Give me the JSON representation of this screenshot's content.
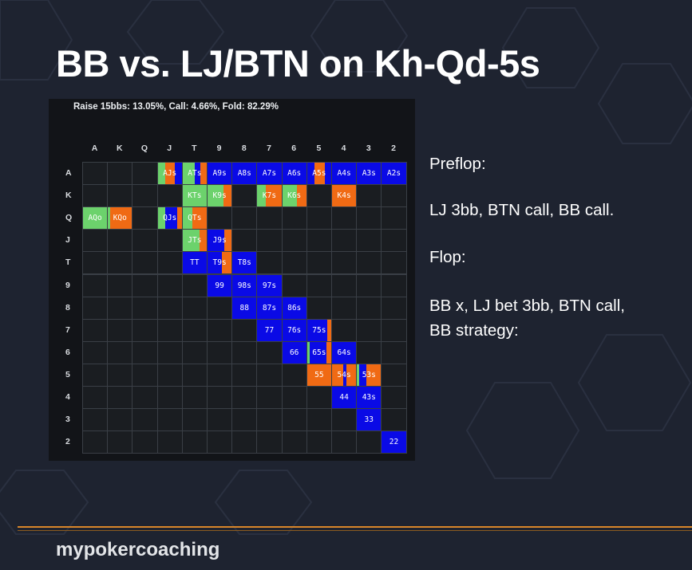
{
  "slide": {
    "title": "BB vs. LJ/BTN on Kh-Qd-5s",
    "summary": "Raise 15bbs: 13.05%, Call: 4.66%, Fold: 82.29%",
    "notes": [
      "Preflop:",
      "LJ 3bb, BTN call, BB call.",
      "Flop:",
      "BB x, LJ bet 3bb, BTN call,",
      "BB strategy:"
    ],
    "logo": "mypokercoaching"
  },
  "colors": {
    "raise": "#0a0ae6",
    "call": "#f06a14",
    "check": "#6cd26c",
    "accent_line": "#d8862a"
  },
  "matrix": {
    "ranks": [
      "A",
      "K",
      "Q",
      "J",
      "T",
      "9",
      "8",
      "7",
      "6",
      "5",
      "4",
      "3",
      "2"
    ],
    "cells": [
      {
        "label": "AJs",
        "row": 0,
        "col": 3,
        "mix": {
          "check": 0.3,
          "call": 0.4,
          "raise": 0.3
        }
      },
      {
        "label": "ATs",
        "row": 0,
        "col": 4,
        "mix": {
          "check": 0.5,
          "raise": 0.25,
          "call": 0.25
        }
      },
      {
        "label": "A9s",
        "row": 0,
        "col": 5,
        "mix": {
          "raise": 1
        }
      },
      {
        "label": "A8s",
        "row": 0,
        "col": 6,
        "mix": {
          "raise": 1
        }
      },
      {
        "label": "A7s",
        "row": 0,
        "col": 7,
        "mix": {
          "raise": 1
        }
      },
      {
        "label": "A6s",
        "row": 0,
        "col": 8,
        "mix": {
          "raise": 1
        }
      },
      {
        "label": "A5s",
        "row": 0,
        "col": 9,
        "mix": {
          "raise": 0.3,
          "call": 0.45,
          "raise2": 0.25
        }
      },
      {
        "label": "A4s",
        "row": 0,
        "col": 10,
        "mix": {
          "raise": 1
        }
      },
      {
        "label": "A3s",
        "row": 0,
        "col": 11,
        "mix": {
          "raise": 1
        }
      },
      {
        "label": "A2s",
        "row": 0,
        "col": 12,
        "mix": {
          "raise": 1
        }
      },
      {
        "label": "KTs",
        "row": 1,
        "col": 4,
        "mix": {
          "check": 1
        }
      },
      {
        "label": "K9s",
        "row": 1,
        "col": 5,
        "mix": {
          "check": 0.65,
          "call": 0.35
        }
      },
      {
        "label": "K7s",
        "row": 1,
        "col": 7,
        "mix": {
          "check": 0.35,
          "call": 0.65
        }
      },
      {
        "label": "K6s",
        "row": 1,
        "col": 8,
        "mix": {
          "check": 0.6,
          "call": 0.4
        }
      },
      {
        "label": "K4s",
        "row": 1,
        "col": 10,
        "mix": {
          "call": 1
        }
      },
      {
        "label": "AQo",
        "row": 2,
        "col": 0,
        "mix": {
          "check": 1
        }
      },
      {
        "label": "KQo",
        "row": 2,
        "col": 1,
        "mix": {
          "check": 0.1,
          "call": 0.9
        }
      },
      {
        "label": "QJs",
        "row": 2,
        "col": 3,
        "mix": {
          "check": 0.3,
          "raise": 0.5,
          "call": 0.2
        }
      },
      {
        "label": "QTs",
        "row": 2,
        "col": 4,
        "mix": {
          "check": 0.4,
          "call": 0.6
        }
      },
      {
        "label": "JTs",
        "row": 3,
        "col": 4,
        "mix": {
          "check": 0.7,
          "call": 0.3
        }
      },
      {
        "label": "J9s",
        "row": 3,
        "col": 5,
        "mix": {
          "raise": 0.7,
          "call": 0.3
        }
      },
      {
        "label": "TT",
        "row": 4,
        "col": 4,
        "mix": {
          "raise": 1
        }
      },
      {
        "label": "T9s",
        "row": 4,
        "col": 5,
        "mix": {
          "raise": 0.6,
          "call": 0.4
        }
      },
      {
        "label": "T8s",
        "row": 4,
        "col": 6,
        "mix": {
          "raise": 1
        }
      },
      {
        "label": "99",
        "row": 5,
        "col": 5,
        "mix": {
          "raise": 1
        }
      },
      {
        "label": "98s",
        "row": 5,
        "col": 6,
        "mix": {
          "raise": 1
        }
      },
      {
        "label": "97s",
        "row": 5,
        "col": 7,
        "mix": {
          "raise": 1
        }
      },
      {
        "label": "88",
        "row": 6,
        "col": 6,
        "mix": {
          "raise": 1
        }
      },
      {
        "label": "87s",
        "row": 6,
        "col": 7,
        "mix": {
          "raise": 1
        }
      },
      {
        "label": "86s",
        "row": 6,
        "col": 8,
        "mix": {
          "raise": 1
        }
      },
      {
        "label": "77",
        "row": 7,
        "col": 7,
        "mix": {
          "raise": 1
        }
      },
      {
        "label": "76s",
        "row": 7,
        "col": 8,
        "mix": {
          "raise": 1
        }
      },
      {
        "label": "75s",
        "row": 7,
        "col": 9,
        "mix": {
          "raise": 0.85,
          "call": 0.15
        }
      },
      {
        "label": "66",
        "row": 8,
        "col": 8,
        "mix": {
          "raise": 1
        }
      },
      {
        "label": "65s",
        "row": 8,
        "col": 9,
        "mix": {
          "check": 0.1,
          "raise": 0.7,
          "call": 0.2
        }
      },
      {
        "label": "64s",
        "row": 8,
        "col": 10,
        "mix": {
          "raise": 1
        }
      },
      {
        "label": "55",
        "row": 9,
        "col": 9,
        "mix": {
          "call": 1
        }
      },
      {
        "label": "54s",
        "row": 9,
        "col": 10,
        "mix": {
          "call": 0.45,
          "raise": 0.15,
          "call2": 0.4
        }
      },
      {
        "label": "53s",
        "row": 9,
        "col": 11,
        "mix": {
          "check": 0.1,
          "raise": 0.3,
          "call": 0.6
        }
      },
      {
        "label": "44",
        "row": 10,
        "col": 10,
        "mix": {
          "raise": 1
        }
      },
      {
        "label": "43s",
        "row": 10,
        "col": 11,
        "mix": {
          "raise": 1
        }
      },
      {
        "label": "33",
        "row": 11,
        "col": 11,
        "mix": {
          "raise": 1
        }
      },
      {
        "label": "22",
        "row": 12,
        "col": 12,
        "mix": {
          "raise": 1
        }
      }
    ]
  }
}
